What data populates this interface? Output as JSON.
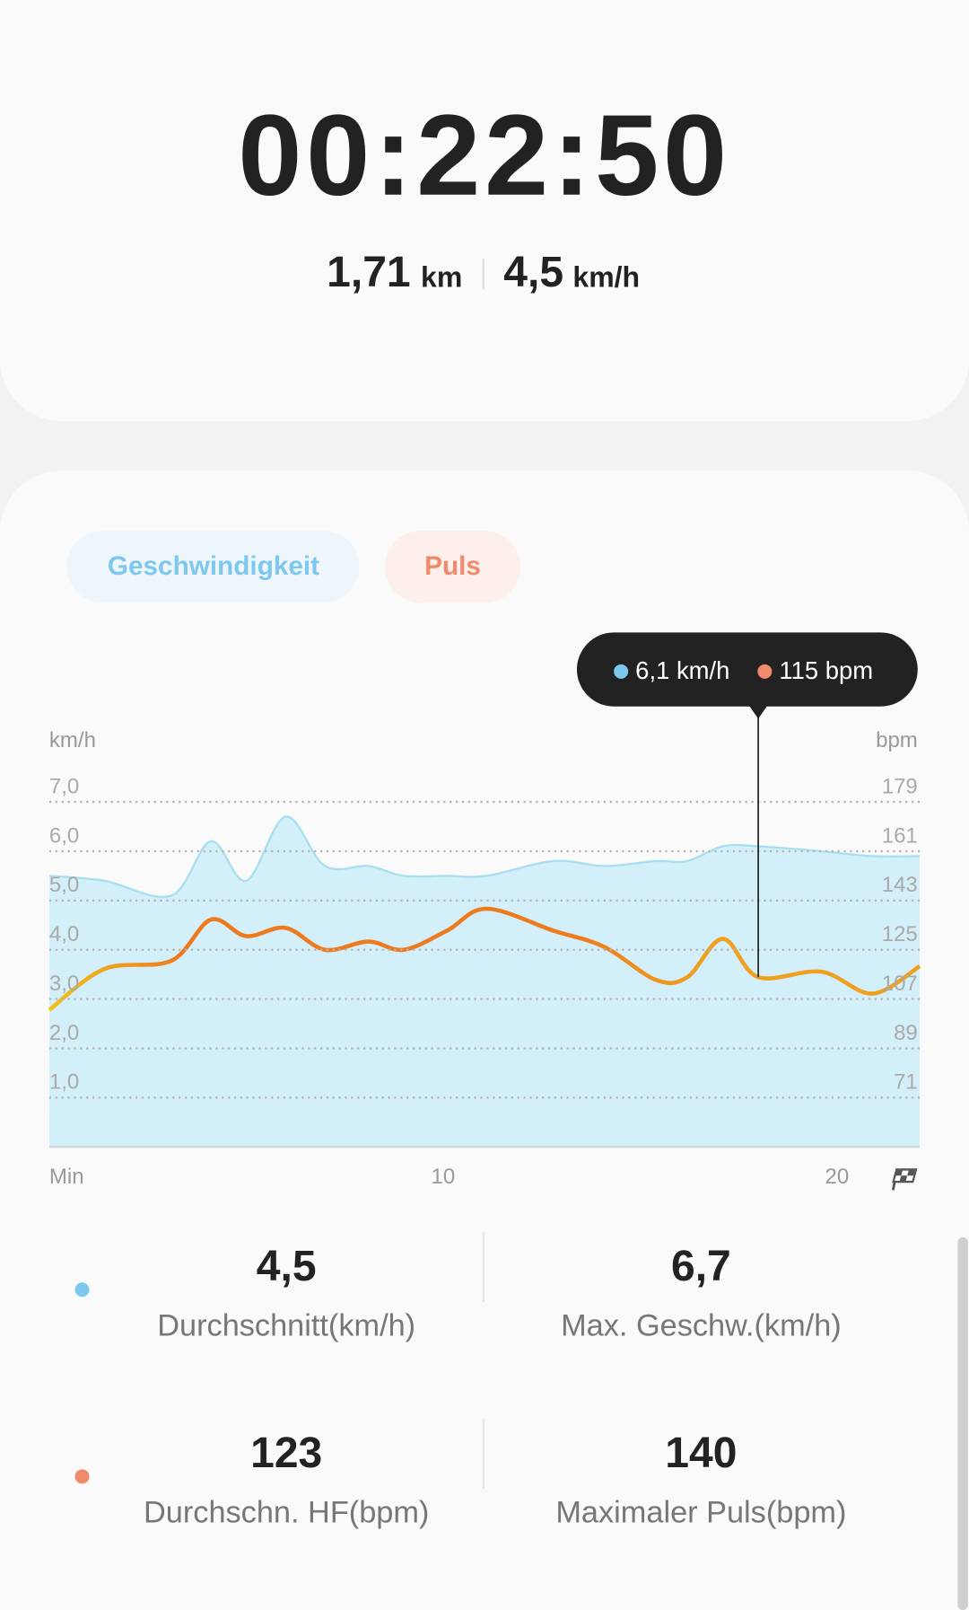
{
  "summary": {
    "time": "00:22:50",
    "distance": "1,71",
    "distance_unit": "km",
    "speed": "4,5",
    "speed_unit": "km/h"
  },
  "tabs": [
    "Geschwindigkeit",
    "Puls"
  ],
  "chart_data": {
    "type": "line",
    "ylabel": "km/h",
    "y2label": "bpm",
    "xlabel": "Min",
    "x": [
      0,
      1.4,
      3.1,
      4.1,
      5.0,
      6.0,
      7.0,
      8.1,
      9.0,
      10.1,
      11.1,
      12.8,
      14.1,
      15.4,
      16.2,
      17.1,
      18.0,
      19.6,
      20.9,
      22.1
    ],
    "series": [
      {
        "name": "Geschwindigkeit",
        "color": "#7ec8ef",
        "values": [
          5.5,
          5.4,
          5.1,
          6.2,
          5.4,
          6.7,
          5.7,
          5.7,
          5.5,
          5.5,
          5.5,
          5.8,
          5.7,
          5.8,
          5.8,
          6.1,
          6.1,
          6.0,
          5.9,
          5.9
        ]
      },
      {
        "name": "Puls",
        "color": "#ee7a1e",
        "axis": "y2",
        "values": [
          103,
          118,
          121,
          136,
          130,
          133,
          125,
          128,
          125,
          132,
          140,
          132,
          126,
          114,
          115,
          129,
          115,
          117,
          109,
          119
        ]
      }
    ],
    "xlim": [
      0,
      22.1
    ],
    "xticks": [
      10,
      20
    ],
    "ylim": [
      0,
      7
    ],
    "yticks": [
      {
        "value": 1,
        "label": "1,0"
      },
      {
        "value": 2,
        "label": "2,0"
      },
      {
        "value": 3,
        "label": "3,0"
      },
      {
        "value": 4,
        "label": "4,0"
      },
      {
        "value": 5,
        "label": "5,0"
      },
      {
        "value": 6,
        "label": "6,0"
      },
      {
        "value": 7,
        "label": "7,0"
      }
    ],
    "y2lim": [
      53,
      179
    ],
    "y2ticks": [
      71,
      89,
      107,
      125,
      143,
      161,
      179
    ],
    "grid": true,
    "tooltip": {
      "x": 18.0,
      "speed": "6,1 km/h",
      "pulse": "115 bpm"
    }
  },
  "stats": [
    {
      "value": "4,5",
      "label": "Durchschnitt(km/h)"
    },
    {
      "value": "6,7",
      "label": "Max. Geschw.(km/h)"
    },
    {
      "value": "123",
      "label": "Durchschn. HF(bpm)"
    },
    {
      "value": "140",
      "label": "Maximaler Puls(bpm)"
    }
  ]
}
